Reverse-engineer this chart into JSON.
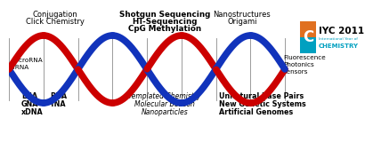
{
  "background_color": "#ffffff",
  "red_strand_color": "#cc0000",
  "blue_strand_color": "#1133bb",
  "connector_color": "#777777",
  "top_left_labels": [
    "Conjugation",
    "Click Chemistry"
  ],
  "top_center_labels": [
    "Shotgun Sequencing",
    "HT-Sequencing",
    "CpG Methylation"
  ],
  "top_right_labels": [
    "Nanostructures",
    "Origami"
  ],
  "mid_left_labels": [
    "microRNA",
    "siRNA"
  ],
  "mid_right_labels": [
    "Fluorescence",
    "Photonics",
    "Sensors"
  ],
  "bot_left_col1": [
    "LNA",
    "GNA",
    "xDNA"
  ],
  "bot_left_col2": [
    "BNA",
    "TNA",
    ""
  ],
  "bot_center_labels": [
    "Templated Chemistry",
    "Molecular Beacon",
    "Nanoparticles"
  ],
  "bot_right_labels": [
    "Unnatural Base Pairs",
    "New Genetic Systems",
    "Artificial Genomes"
  ],
  "iyc_text": "IYC 2011",
  "iyc_sub": "CHEMISTRY",
  "iyc_sub2": "International Year of",
  "box_color_top": "#e07020",
  "box_color_bot": "#00a0c0",
  "box_letter": "C"
}
